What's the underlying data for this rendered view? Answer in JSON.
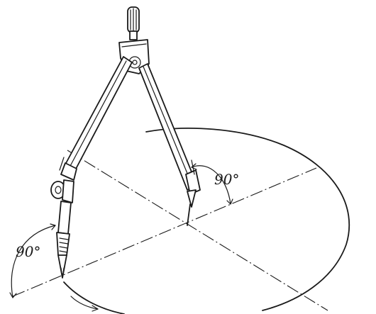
{
  "diagram": {
    "labels": {
      "angle_right": "90°",
      "angle_left": "90°"
    },
    "colors": {
      "ink": "#1a1a1a",
      "paper": "#ffffff"
    },
    "parts": [
      "compass-handle",
      "compass-hinge",
      "compass-leg-left",
      "compass-leg-right",
      "needle-point",
      "pencil-lead",
      "adjustment-screw",
      "circle-path",
      "center-lines",
      "angle-arcs"
    ]
  }
}
